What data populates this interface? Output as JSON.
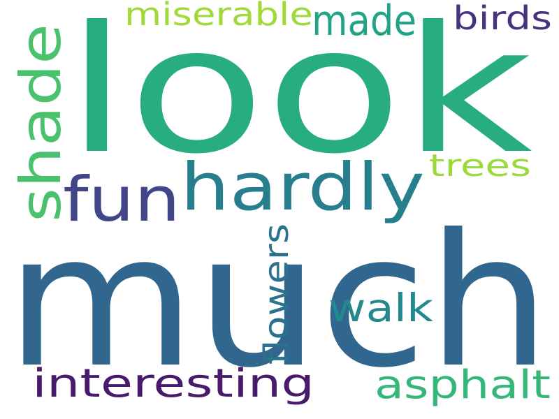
{
  "wordcloud": {
    "background": "#ffffff",
    "words": [
      {
        "text": "look",
        "color": "#27ad81",
        "orientation": "horizontal"
      },
      {
        "text": "much",
        "color": "#31668e",
        "orientation": "horizontal"
      },
      {
        "text": "hardly",
        "color": "#277f8e",
        "orientation": "horizontal"
      },
      {
        "text": "fun",
        "color": "#404688",
        "orientation": "horizontal"
      },
      {
        "text": "shade",
        "color": "#4ac16d",
        "orientation": "vertical"
      },
      {
        "text": "made",
        "color": "#20a386",
        "orientation": "horizontal"
      },
      {
        "text": "miserable",
        "color": "#a0da39",
        "orientation": "horizontal"
      },
      {
        "text": "birds",
        "color": "#46327e",
        "orientation": "horizontal"
      },
      {
        "text": "trees",
        "color": "#9bd93c",
        "orientation": "horizontal"
      },
      {
        "text": "walk",
        "color": "#23898e",
        "orientation": "horizontal"
      },
      {
        "text": "flowers",
        "color": "#2c728e",
        "orientation": "vertical"
      },
      {
        "text": "interesting",
        "color": "#481a6c",
        "orientation": "horizontal"
      },
      {
        "text": "asphalt",
        "color": "#35b779",
        "orientation": "horizontal"
      }
    ]
  }
}
